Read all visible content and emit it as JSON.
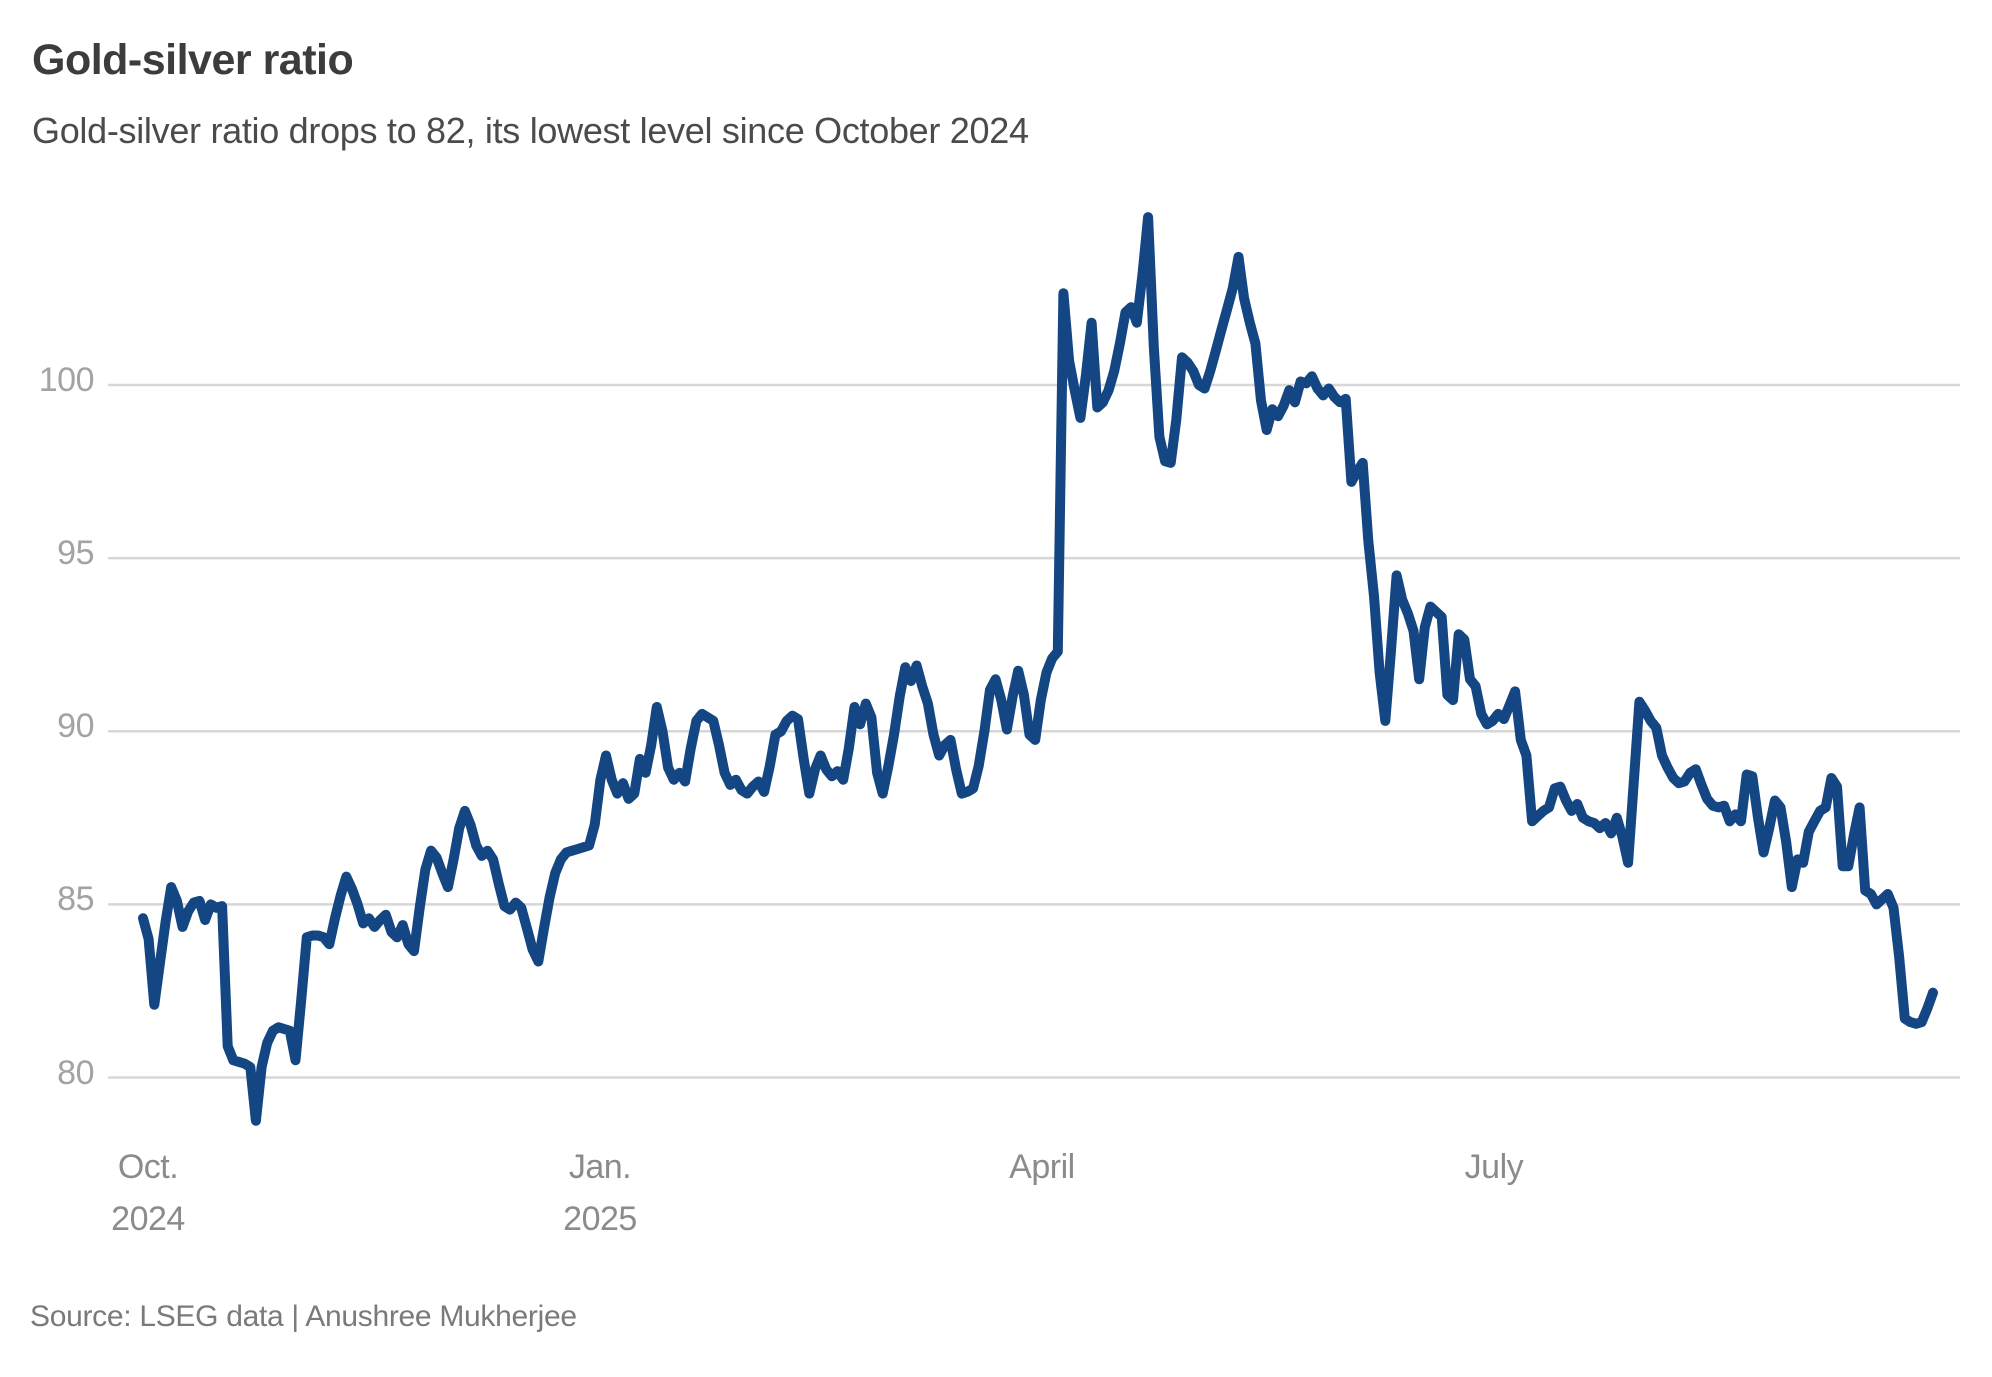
{
  "header": {
    "title": "Gold-silver ratio",
    "subtitle": "Gold-silver ratio drops to 82, its lowest level since October 2024"
  },
  "footer": {
    "source": "Source: LSEG data | Anushree Mukherjee"
  },
  "colors": {
    "line": "#134682",
    "grid": "#d7d7d7",
    "title_text": "#3c3c3c",
    "subtitle_text": "#4b4b4b",
    "y_tick_text": "#a3a3a3",
    "x_tick_text": "#8b8b8b",
    "source_text": "#7a7a7a",
    "background": "#ffffff"
  },
  "chart_data": {
    "type": "line",
    "title": "Gold-silver ratio",
    "series_name": "Gold-silver ratio (gold price / silver price)",
    "xlabel": "",
    "ylabel": "",
    "x_start": "Oct. 2024",
    "x_end": "late Sep. 2025",
    "ylim": [
      78,
      105.5
    ],
    "grid": "horizontal-only",
    "legend": "none",
    "y_ticks": [
      {
        "value": 100,
        "label": "100"
      },
      {
        "value": 95,
        "label": "95"
      },
      {
        "value": 90,
        "label": "90"
      },
      {
        "value": 85,
        "label": "85"
      },
      {
        "value": 80,
        "label": "80"
      }
    ],
    "x_ticks": [
      {
        "frac": 0.0028,
        "line1": "Oct.",
        "line2": "2024"
      },
      {
        "frac": 0.2553,
        "line1": "Jan.",
        "line2": "2025"
      },
      {
        "frac": 0.5022,
        "line1": "April",
        "line2": ""
      },
      {
        "frac": 0.7547,
        "line1": "July",
        "line2": ""
      }
    ],
    "values": [
      84.6,
      84.0,
      82.1,
      83.3,
      84.5,
      85.5,
      85.1,
      84.35,
      84.8,
      85.05,
      85.1,
      84.55,
      85.0,
      84.9,
      84.95,
      80.9,
      80.5,
      80.45,
      80.4,
      80.3,
      78.75,
      80.3,
      81.0,
      81.35,
      81.45,
      81.4,
      81.35,
      80.5,
      82.2,
      84.05,
      84.1,
      84.1,
      84.05,
      83.85,
      84.6,
      85.25,
      85.8,
      85.45,
      85.0,
      84.45,
      84.6,
      84.35,
      84.55,
      84.7,
      84.2,
      84.05,
      84.4,
      83.85,
      83.65,
      84.9,
      86.0,
      86.55,
      86.35,
      85.9,
      85.5,
      86.3,
      87.2,
      87.7,
      87.3,
      86.7,
      86.4,
      86.55,
      86.3,
      85.6,
      84.95,
      84.85,
      85.05,
      84.9,
      84.3,
      83.7,
      83.35,
      84.3,
      85.2,
      85.9,
      86.3,
      86.5,
      86.55,
      86.6,
      86.65,
      86.7,
      87.3,
      88.6,
      89.3,
      88.6,
      88.2,
      88.5,
      88.05,
      88.2,
      89.2,
      88.8,
      89.6,
      90.7,
      90.0,
      88.95,
      88.6,
      88.8,
      88.55,
      89.5,
      90.3,
      90.5,
      90.4,
      90.3,
      89.6,
      88.8,
      88.45,
      88.6,
      88.3,
      88.2,
      88.4,
      88.55,
      88.25,
      89.0,
      89.9,
      90.0,
      90.3,
      90.45,
      90.35,
      89.2,
      88.2,
      88.9,
      89.3,
      88.9,
      88.7,
      88.85,
      88.6,
      89.5,
      90.7,
      90.2,
      90.8,
      90.4,
      88.8,
      88.2,
      89.0,
      89.9,
      91.0,
      91.85,
      91.45,
      91.9,
      91.3,
      90.8,
      89.9,
      89.3,
      89.6,
      89.75,
      88.9,
      88.2,
      88.25,
      88.35,
      89.0,
      90.0,
      91.2,
      91.5,
      90.9,
      90.05,
      91.0,
      91.75,
      91.05,
      89.9,
      89.75,
      90.9,
      91.7,
      92.1,
      92.3,
      102.65,
      100.7,
      99.85,
      99.05,
      100.3,
      101.8,
      99.35,
      99.5,
      99.85,
      100.4,
      101.2,
      102.1,
      102.25,
      101.8,
      103.2,
      104.85,
      101.1,
      98.5,
      97.8,
      97.75,
      99.0,
      100.8,
      100.65,
      100.4,
      100.0,
      99.9,
      100.4,
      101.0,
      101.6,
      102.2,
      102.8,
      103.7,
      102.5,
      101.8,
      101.2,
      99.55,
      98.7,
      99.3,
      99.1,
      99.4,
      99.85,
      99.5,
      100.1,
      100.05,
      100.25,
      99.9,
      99.7,
      99.9,
      99.65,
      99.5,
      99.6,
      97.2,
      97.5,
      97.75,
      95.5,
      93.9,
      91.7,
      90.3,
      92.3,
      94.5,
      93.8,
      93.4,
      92.9,
      91.5,
      93.0,
      93.6,
      93.45,
      93.3,
      91.05,
      90.9,
      92.8,
      92.65,
      91.5,
      91.3,
      90.5,
      90.2,
      90.3,
      90.5,
      90.35,
      90.75,
      91.15,
      89.75,
      89.3,
      87.4,
      87.55,
      87.7,
      87.8,
      88.35,
      88.4,
      88.0,
      87.7,
      87.9,
      87.5,
      87.4,
      87.35,
      87.2,
      87.35,
      87.05,
      87.5,
      86.95,
      86.2,
      88.5,
      90.85,
      90.6,
      90.3,
      90.1,
      89.3,
      88.95,
      88.65,
      88.5,
      88.55,
      88.8,
      88.9,
      88.45,
      88.05,
      87.85,
      87.8,
      87.85,
      87.4,
      87.6,
      87.4,
      88.75,
      88.7,
      87.5,
      86.5,
      87.2,
      88.0,
      87.8,
      86.8,
      85.5,
      86.3,
      86.2,
      87.1,
      87.4,
      87.7,
      87.8,
      88.65,
      88.4,
      86.1,
      86.1,
      87.0,
      87.8,
      85.4,
      85.3,
      85.0,
      85.15,
      85.3,
      84.9,
      83.5,
      81.7,
      81.6,
      81.55,
      81.6,
      82.0,
      82.45
    ]
  }
}
